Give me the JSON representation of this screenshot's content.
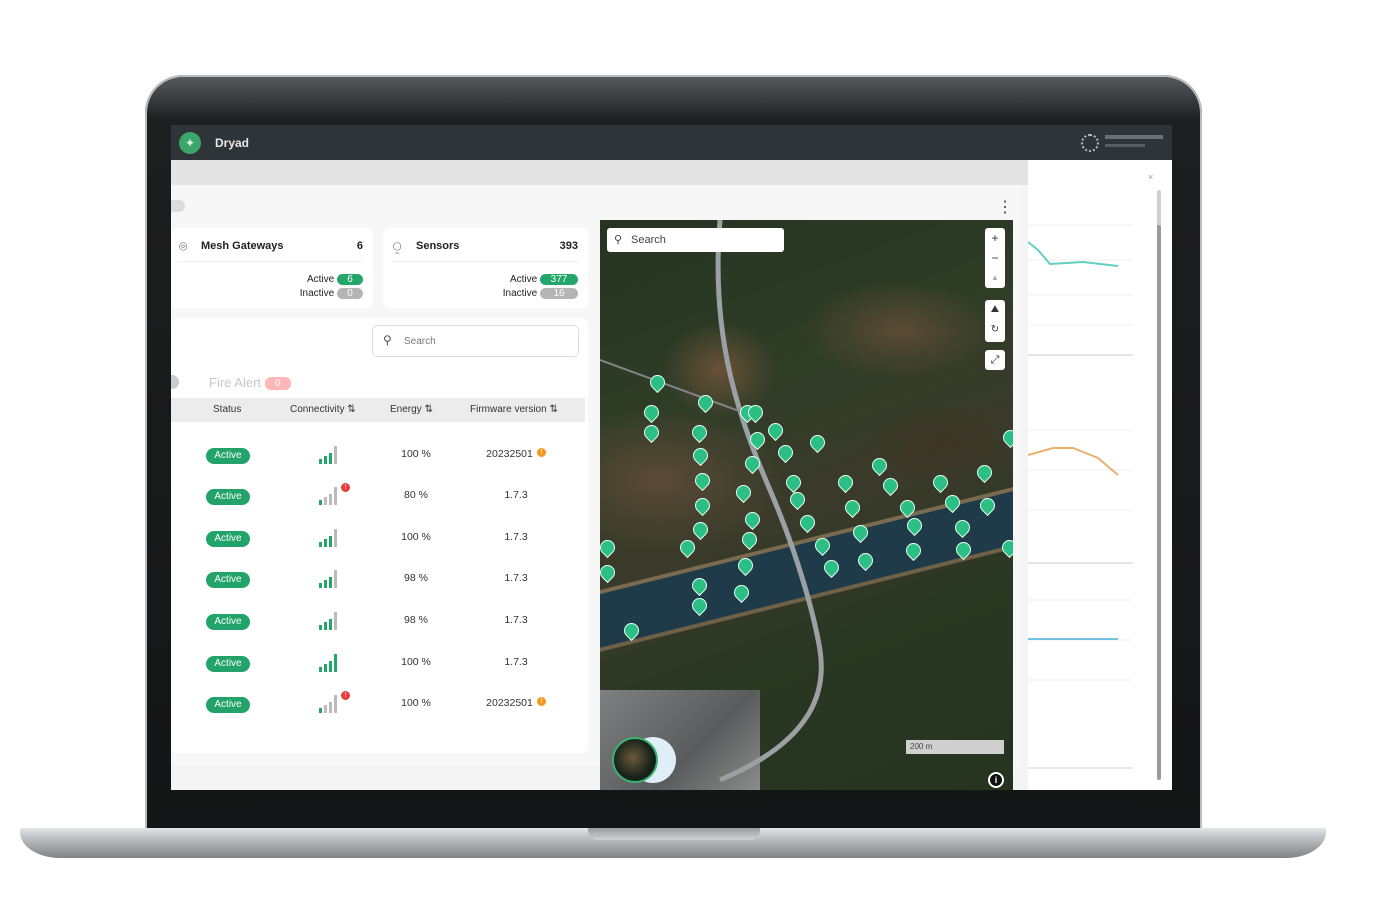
{
  "app": {
    "name": "Dryad",
    "logo_icon": "leaf-icon",
    "user_icon": "user-avatar-icon"
  },
  "summary": {
    "gateways": {
      "title": "Mesh Gateways",
      "total": "6",
      "active_label": "Active",
      "active": "6",
      "inactive_label": "Inactive",
      "inactive": "0",
      "icon": "gateway-wifi-pin-icon"
    },
    "sensors": {
      "title": "Sensors",
      "total": "393",
      "active_label": "Active",
      "active": "377",
      "inactive_label": "Inactive",
      "inactive": "16",
      "icon": "sensor-pulse-pin-icon"
    }
  },
  "search": {
    "placeholder": "Search"
  },
  "tabs": {
    "fire_alert": "Fire Alert",
    "fire_alert_count": "0"
  },
  "table": {
    "columns": [
      "Status",
      "Connectivity",
      "Energy",
      "Firmware version"
    ],
    "rows": [
      {
        "status": "Active",
        "signal": 3,
        "signal_warning": false,
        "energy": "100 %",
        "firmware": "20232501",
        "firmware_warning": true
      },
      {
        "status": "Active",
        "signal": 1,
        "signal_warning": true,
        "energy": "80 %",
        "firmware": "1.7.3",
        "firmware_warning": false
      },
      {
        "status": "Active",
        "signal": 3,
        "signal_warning": false,
        "energy": "100 %",
        "firmware": "1.7.3",
        "firmware_warning": false
      },
      {
        "status": "Active",
        "signal": 3,
        "signal_warning": false,
        "energy": "98 %",
        "firmware": "1.7.3",
        "firmware_warning": false
      },
      {
        "status": "Active",
        "signal": 3,
        "signal_warning": false,
        "energy": "98 %",
        "firmware": "1.7.3",
        "firmware_warning": false
      },
      {
        "status": "Active",
        "signal": 4,
        "signal_warning": false,
        "energy": "100 %",
        "firmware": "1.7.3",
        "firmware_warning": false
      },
      {
        "status": "Active",
        "signal": 1,
        "signal_warning": true,
        "energy": "100 %",
        "firmware": "20232501",
        "firmware_warning": true
      }
    ]
  },
  "map": {
    "search_placeholder": "Search",
    "zoom_in": "+",
    "zoom_out": "−",
    "scale": "200 m",
    "marker_color": "#2bbf85"
  },
  "colors": {
    "active": "#22a66a",
    "topbar": "#2f3439",
    "alert": "#ffb6b6"
  }
}
